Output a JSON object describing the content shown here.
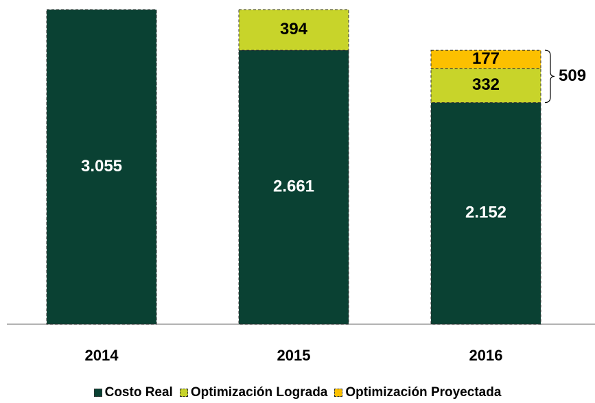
{
  "chart_data": {
    "type": "stacked-bar",
    "categories": [
      "2014",
      "2015",
      "2016"
    ],
    "series": [
      {
        "name": "Costo Real",
        "color": "#0a4133",
        "values": [
          3055,
          2661,
          2152
        ],
        "value_labels": [
          "3.055",
          "2.661",
          "2.152"
        ]
      },
      {
        "name": "Optimización Lograda",
        "color": "#c8d42a",
        "values": [
          null,
          394,
          332
        ],
        "value_labels": [
          null,
          "394",
          "332"
        ]
      },
      {
        "name": "Optimización Proyectada",
        "color": "#fcc000",
        "values": [
          null,
          null,
          177
        ],
        "value_labels": [
          null,
          null,
          "177"
        ]
      }
    ],
    "annotation": "509"
  }
}
